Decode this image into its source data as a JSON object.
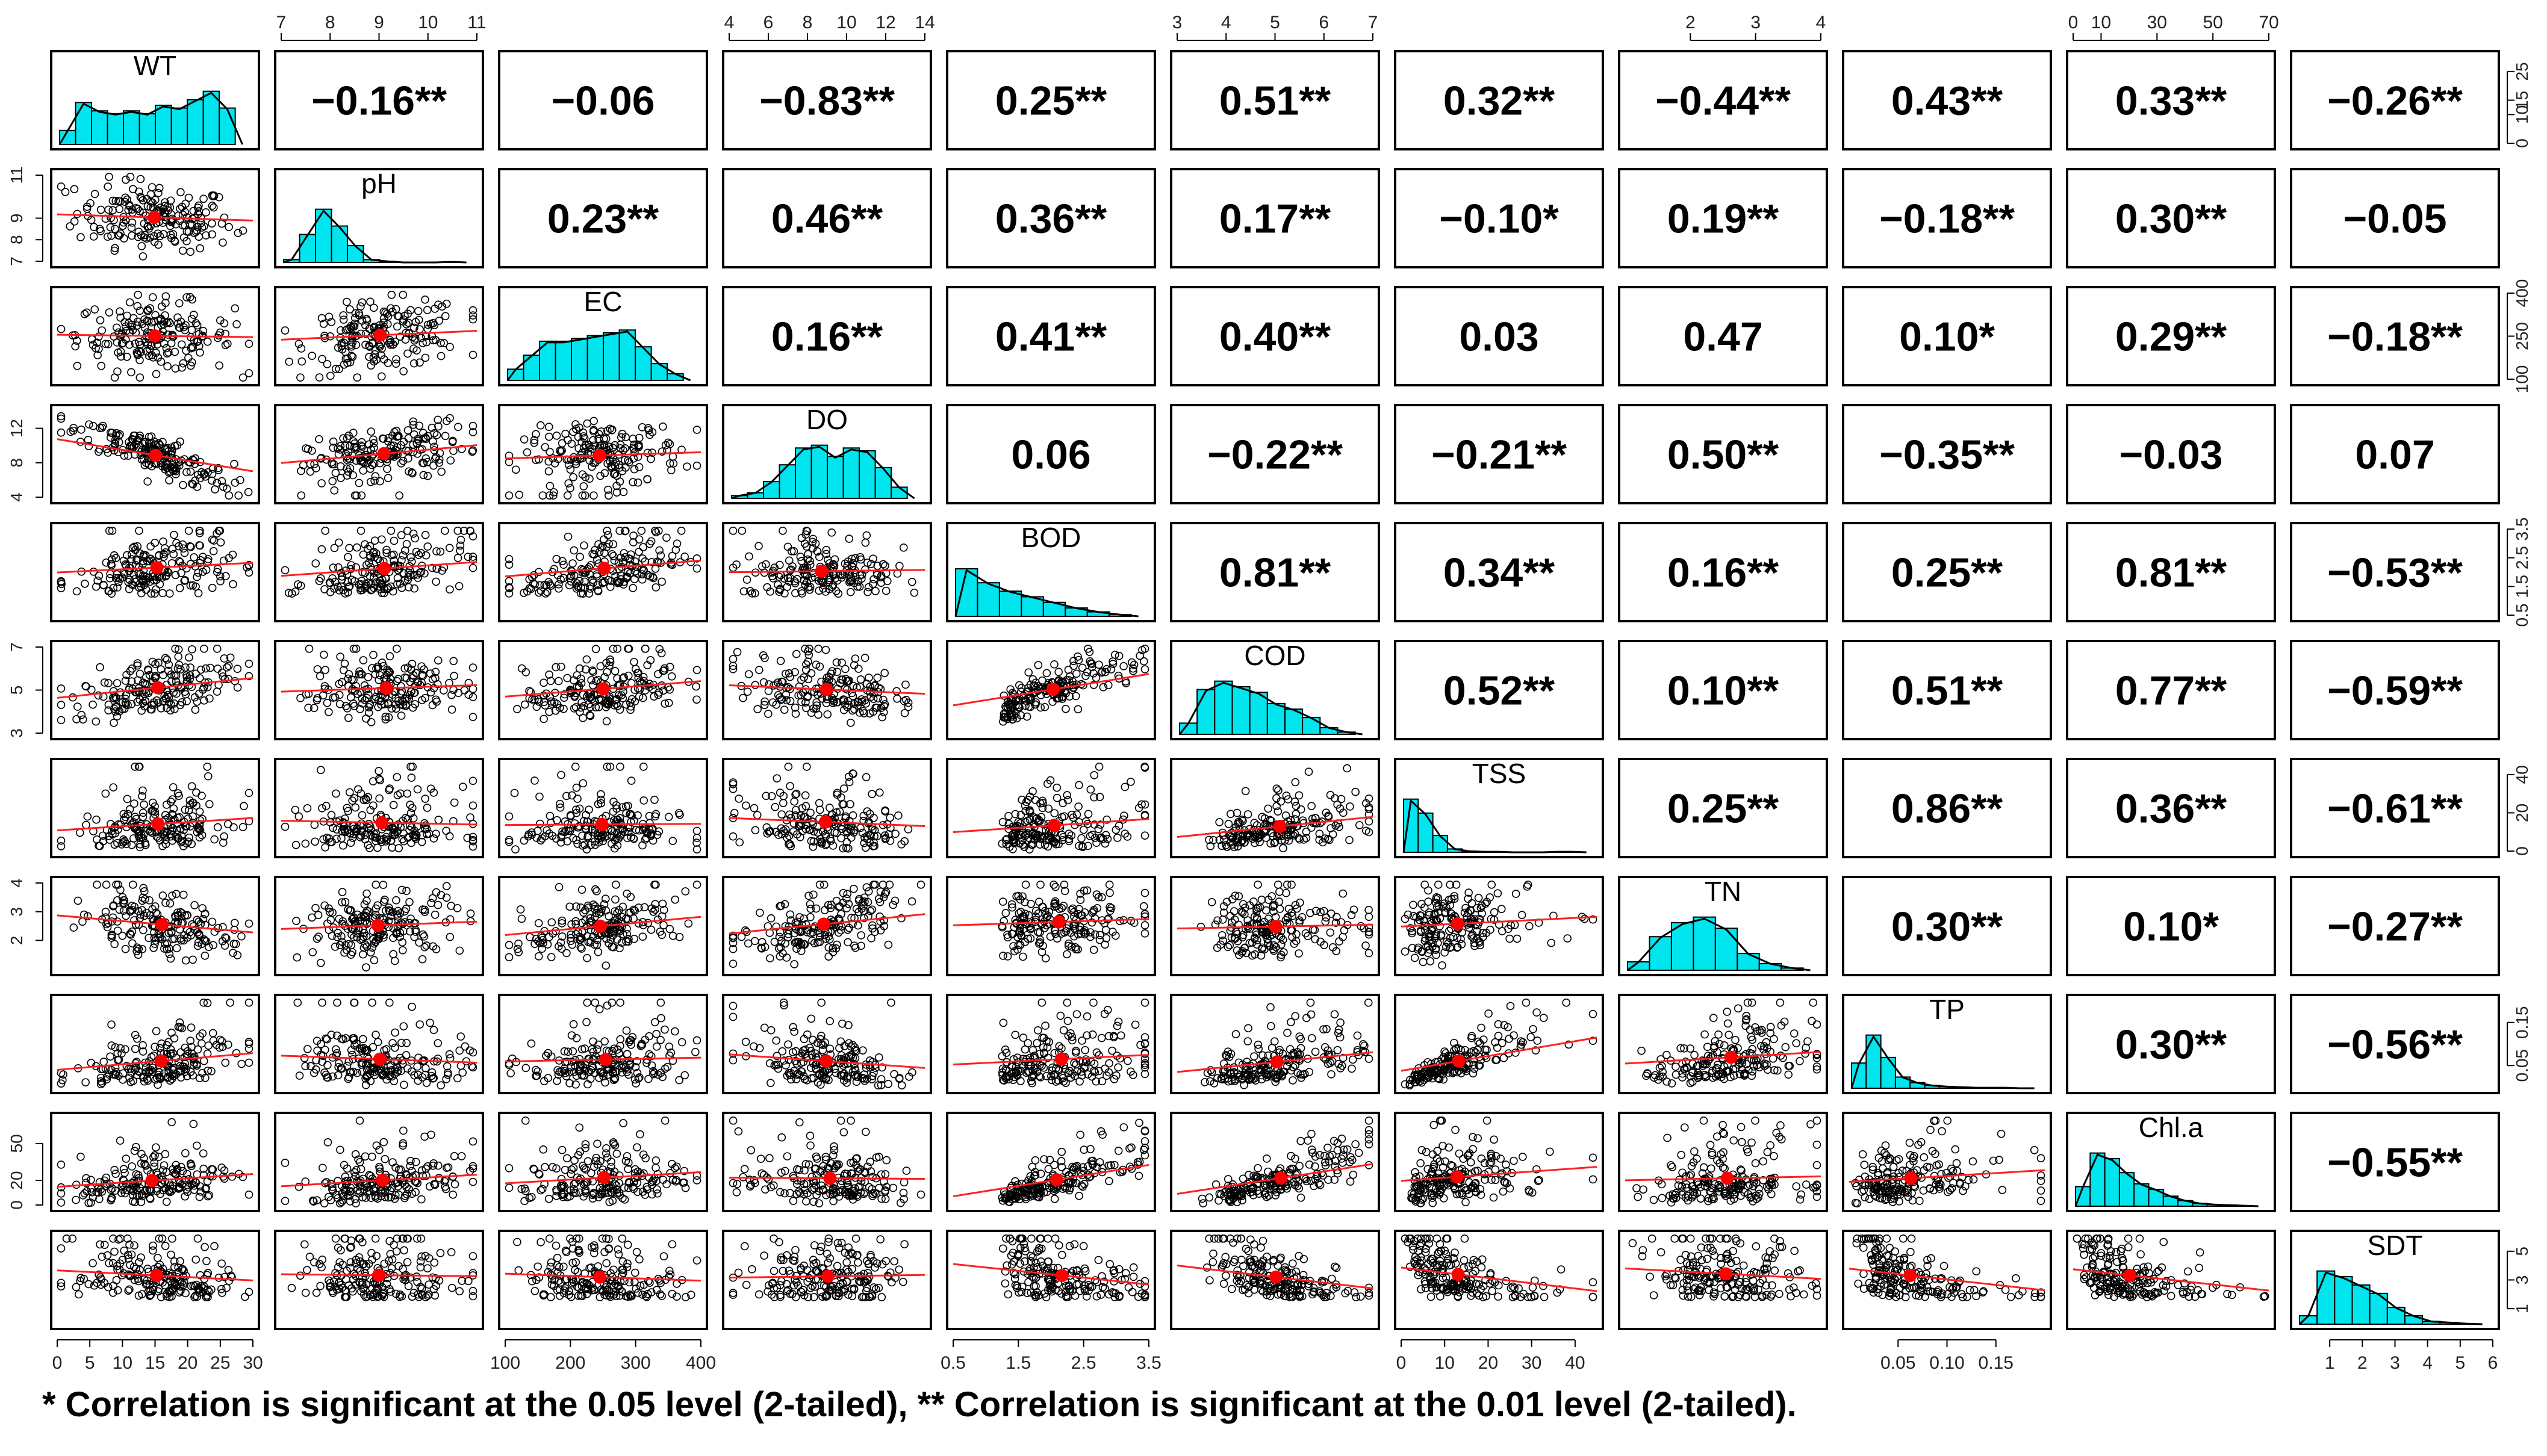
{
  "chart_data": {
    "type": "scatter",
    "variables": [
      "WT",
      "pH",
      "EC",
      "DO",
      "BOD",
      "COD",
      "TSS",
      "TN",
      "TP",
      "Chl.a",
      "SDT"
    ],
    "correlations": [
      [
        "",
        "−0.16**",
        "−0.06",
        "−0.83**",
        "0.25**",
        "0.51**",
        "0.32**",
        "−0.44**",
        "0.43**",
        "0.33**",
        "−0.26**"
      ],
      [
        "",
        "",
        "0.23**",
        "0.46**",
        "0.36**",
        "0.17**",
        "−0.10*",
        "0.19**",
        "−0.18**",
        "0.30**",
        "−0.05"
      ],
      [
        "",
        "",
        "",
        "0.16**",
        "0.41**",
        "0.40**",
        "0.03",
        "0.47",
        "0.10*",
        "0.29**",
        "−0.18**"
      ],
      [
        "",
        "",
        "",
        "",
        "0.06",
        "−0.22**",
        "−0.21**",
        "0.50**",
        "−0.35**",
        "−0.03",
        "0.07"
      ],
      [
        "",
        "",
        "",
        "",
        "",
        "0.81**",
        "0.34**",
        "0.16**",
        "0.25**",
        "0.81**",
        "−0.53**"
      ],
      [
        "",
        "",
        "",
        "",
        "",
        "",
        "0.52**",
        "0.10**",
        "0.51**",
        "0.77**",
        "−0.59**"
      ],
      [
        "",
        "",
        "",
        "",
        "",
        "",
        "",
        "0.25**",
        "0.86**",
        "0.36**",
        "−0.61**"
      ],
      [
        "",
        "",
        "",
        "",
        "",
        "",
        "",
        "",
        "0.30**",
        "0.10*",
        "−0.27**"
      ],
      [
        "",
        "",
        "",
        "",
        "",
        "",
        "",
        "",
        "",
        "0.30**",
        "−0.56**"
      ],
      [
        "",
        "",
        "",
        "",
        "",
        "",
        "",
        "",
        "",
        "",
        "−0.55**"
      ],
      [
        "",
        "",
        "",
        "",
        "",
        "",
        "",
        "",
        "",
        "",
        ""
      ]
    ],
    "ranges": [
      [
        0,
        30
      ],
      [
        7,
        11
      ],
      [
        100,
        400
      ],
      [
        4,
        14
      ],
      [
        0.5,
        3.5
      ],
      [
        3,
        7
      ],
      [
        0,
        45
      ],
      [
        1,
        4
      ],
      [
        0,
        0.2
      ],
      [
        0,
        70
      ],
      [
        0,
        6
      ]
    ],
    "tick_values": [
      [
        0,
        5,
        10,
        15,
        20,
        25,
        30
      ],
      [
        7,
        8,
        9,
        10,
        11
      ],
      [
        100,
        200,
        300,
        400
      ],
      [
        4,
        6,
        8,
        10,
        12,
        14
      ],
      [
        0.5,
        1.5,
        2.5,
        3.5
      ],
      [
        3,
        4,
        5,
        6,
        7
      ],
      [
        0,
        10,
        20,
        30,
        40
      ],
      [
        2,
        3,
        4
      ],
      [
        0.05,
        0.1,
        0.15
      ],
      [
        0,
        10,
        30,
        50,
        70
      ],
      [
        1,
        2,
        3,
        4,
        5,
        6
      ]
    ],
    "top_axis": [
      {
        "col": 1,
        "ticks": [
          "7",
          "8",
          "9",
          "10",
          "11"
        ]
      },
      {
        "col": 3,
        "ticks": [
          "4",
          "6",
          "8",
          "10",
          "12",
          "14"
        ]
      },
      {
        "col": 5,
        "ticks": [
          "3",
          "4",
          "5",
          "6",
          "7"
        ]
      },
      {
        "col": 7,
        "ticks": [
          "2",
          "3",
          "4"
        ]
      },
      {
        "col": 9,
        "ticks": [
          "0",
          "10",
          "30",
          "50",
          "70"
        ]
      }
    ],
    "bottom_axis": [
      {
        "col": 0,
        "ticks": [
          "0",
          "5",
          "10",
          "15",
          "20",
          "25",
          "30"
        ]
      },
      {
        "col": 2,
        "ticks": [
          "100",
          "200",
          "300",
          "400"
        ]
      },
      {
        "col": 4,
        "ticks": [
          "0.5",
          "1.5",
          "2.5",
          "3.5"
        ]
      },
      {
        "col": 6,
        "ticks": [
          "0",
          "10",
          "20",
          "30",
          "40"
        ]
      },
      {
        "col": 8,
        "ticks": [
          "0.05",
          "0.10",
          "0.15"
        ]
      },
      {
        "col": 10,
        "ticks": [
          "1",
          "2",
          "3",
          "4",
          "5",
          "6"
        ]
      }
    ],
    "left_axis": [
      {
        "row": 1,
        "ticks": [
          "7",
          "8",
          "9",
          "11"
        ]
      },
      {
        "row": 3,
        "ticks": [
          "4",
          "8",
          "12"
        ]
      },
      {
        "row": 5,
        "ticks": [
          "3",
          "5",
          "7"
        ]
      },
      {
        "row": 7,
        "ticks": [
          "2",
          "3",
          "4"
        ]
      },
      {
        "row": 9,
        "ticks": [
          "0",
          "20",
          "50"
        ]
      }
    ],
    "right_axis": [
      {
        "row": 0,
        "ticks": [
          "0",
          "10",
          "15",
          "25"
        ]
      },
      {
        "row": 2,
        "ticks": [
          "100",
          "250",
          "400"
        ]
      },
      {
        "row": 4,
        "ticks": [
          "0.5",
          "1.5",
          "2.5",
          "3.5"
        ]
      },
      {
        "row": 6,
        "ticks": [
          "0",
          "20",
          "40"
        ]
      },
      {
        "row": 8,
        "ticks": [
          "0.05",
          "0.15"
        ]
      },
      {
        "row": 10,
        "ticks": [
          "1",
          "3",
          "5"
        ]
      }
    ],
    "histograms": [
      [
        0.25,
        0.75,
        0.6,
        0.55,
        0.6,
        0.55,
        0.7,
        0.65,
        0.8,
        0.95,
        0.65
      ],
      [
        0.05,
        0.5,
        0.95,
        0.65,
        0.3,
        0.05,
        0.02,
        0.0,
        0.0,
        0.0,
        0.01
      ],
      [
        0.2,
        0.45,
        0.7,
        0.7,
        0.75,
        0.8,
        0.85,
        0.9,
        0.6,
        0.3,
        0.12
      ],
      [
        0.05,
        0.1,
        0.3,
        0.6,
        0.9,
        0.95,
        0.75,
        0.9,
        0.85,
        0.55,
        0.2
      ],
      [
        0.85,
        0.6,
        0.45,
        0.35,
        0.25,
        0.15,
        0.08,
        0.03
      ],
      [
        0.2,
        0.8,
        0.95,
        0.85,
        0.75,
        0.55,
        0.45,
        0.3,
        0.12,
        0.04
      ],
      [
        0.95,
        0.7,
        0.3,
        0.06,
        0.02,
        0.01,
        0.01,
        0.0,
        0.0,
        0.0,
        0.01,
        0.01
      ],
      [
        0.15,
        0.6,
        0.85,
        0.95,
        0.75,
        0.3,
        0.12,
        0.04
      ],
      [
        0.45,
        0.95,
        0.55,
        0.2,
        0.1,
        0.05,
        0.03,
        0.02,
        0.01,
        0.01,
        0.01,
        0.0
      ],
      [
        0.35,
        0.95,
        0.85,
        0.6,
        0.4,
        0.3,
        0.18,
        0.1,
        0.05,
        0.03,
        0.02,
        0.01
      ],
      [
        0.15,
        0.95,
        0.85,
        0.7,
        0.55,
        0.3,
        0.15,
        0.05,
        0.03,
        0.01
      ]
    ],
    "grid": false,
    "colors": {
      "histogram_fill": "#00e5ee",
      "smooth_line": "#ff2020",
      "mean_point": "#ff0000",
      "points": "#000000"
    }
  },
  "footnote": "*  Correlation is significant at the 0.05 level (2-tailed), ** Correlation is significant at the 0.01 level (2-tailed)."
}
